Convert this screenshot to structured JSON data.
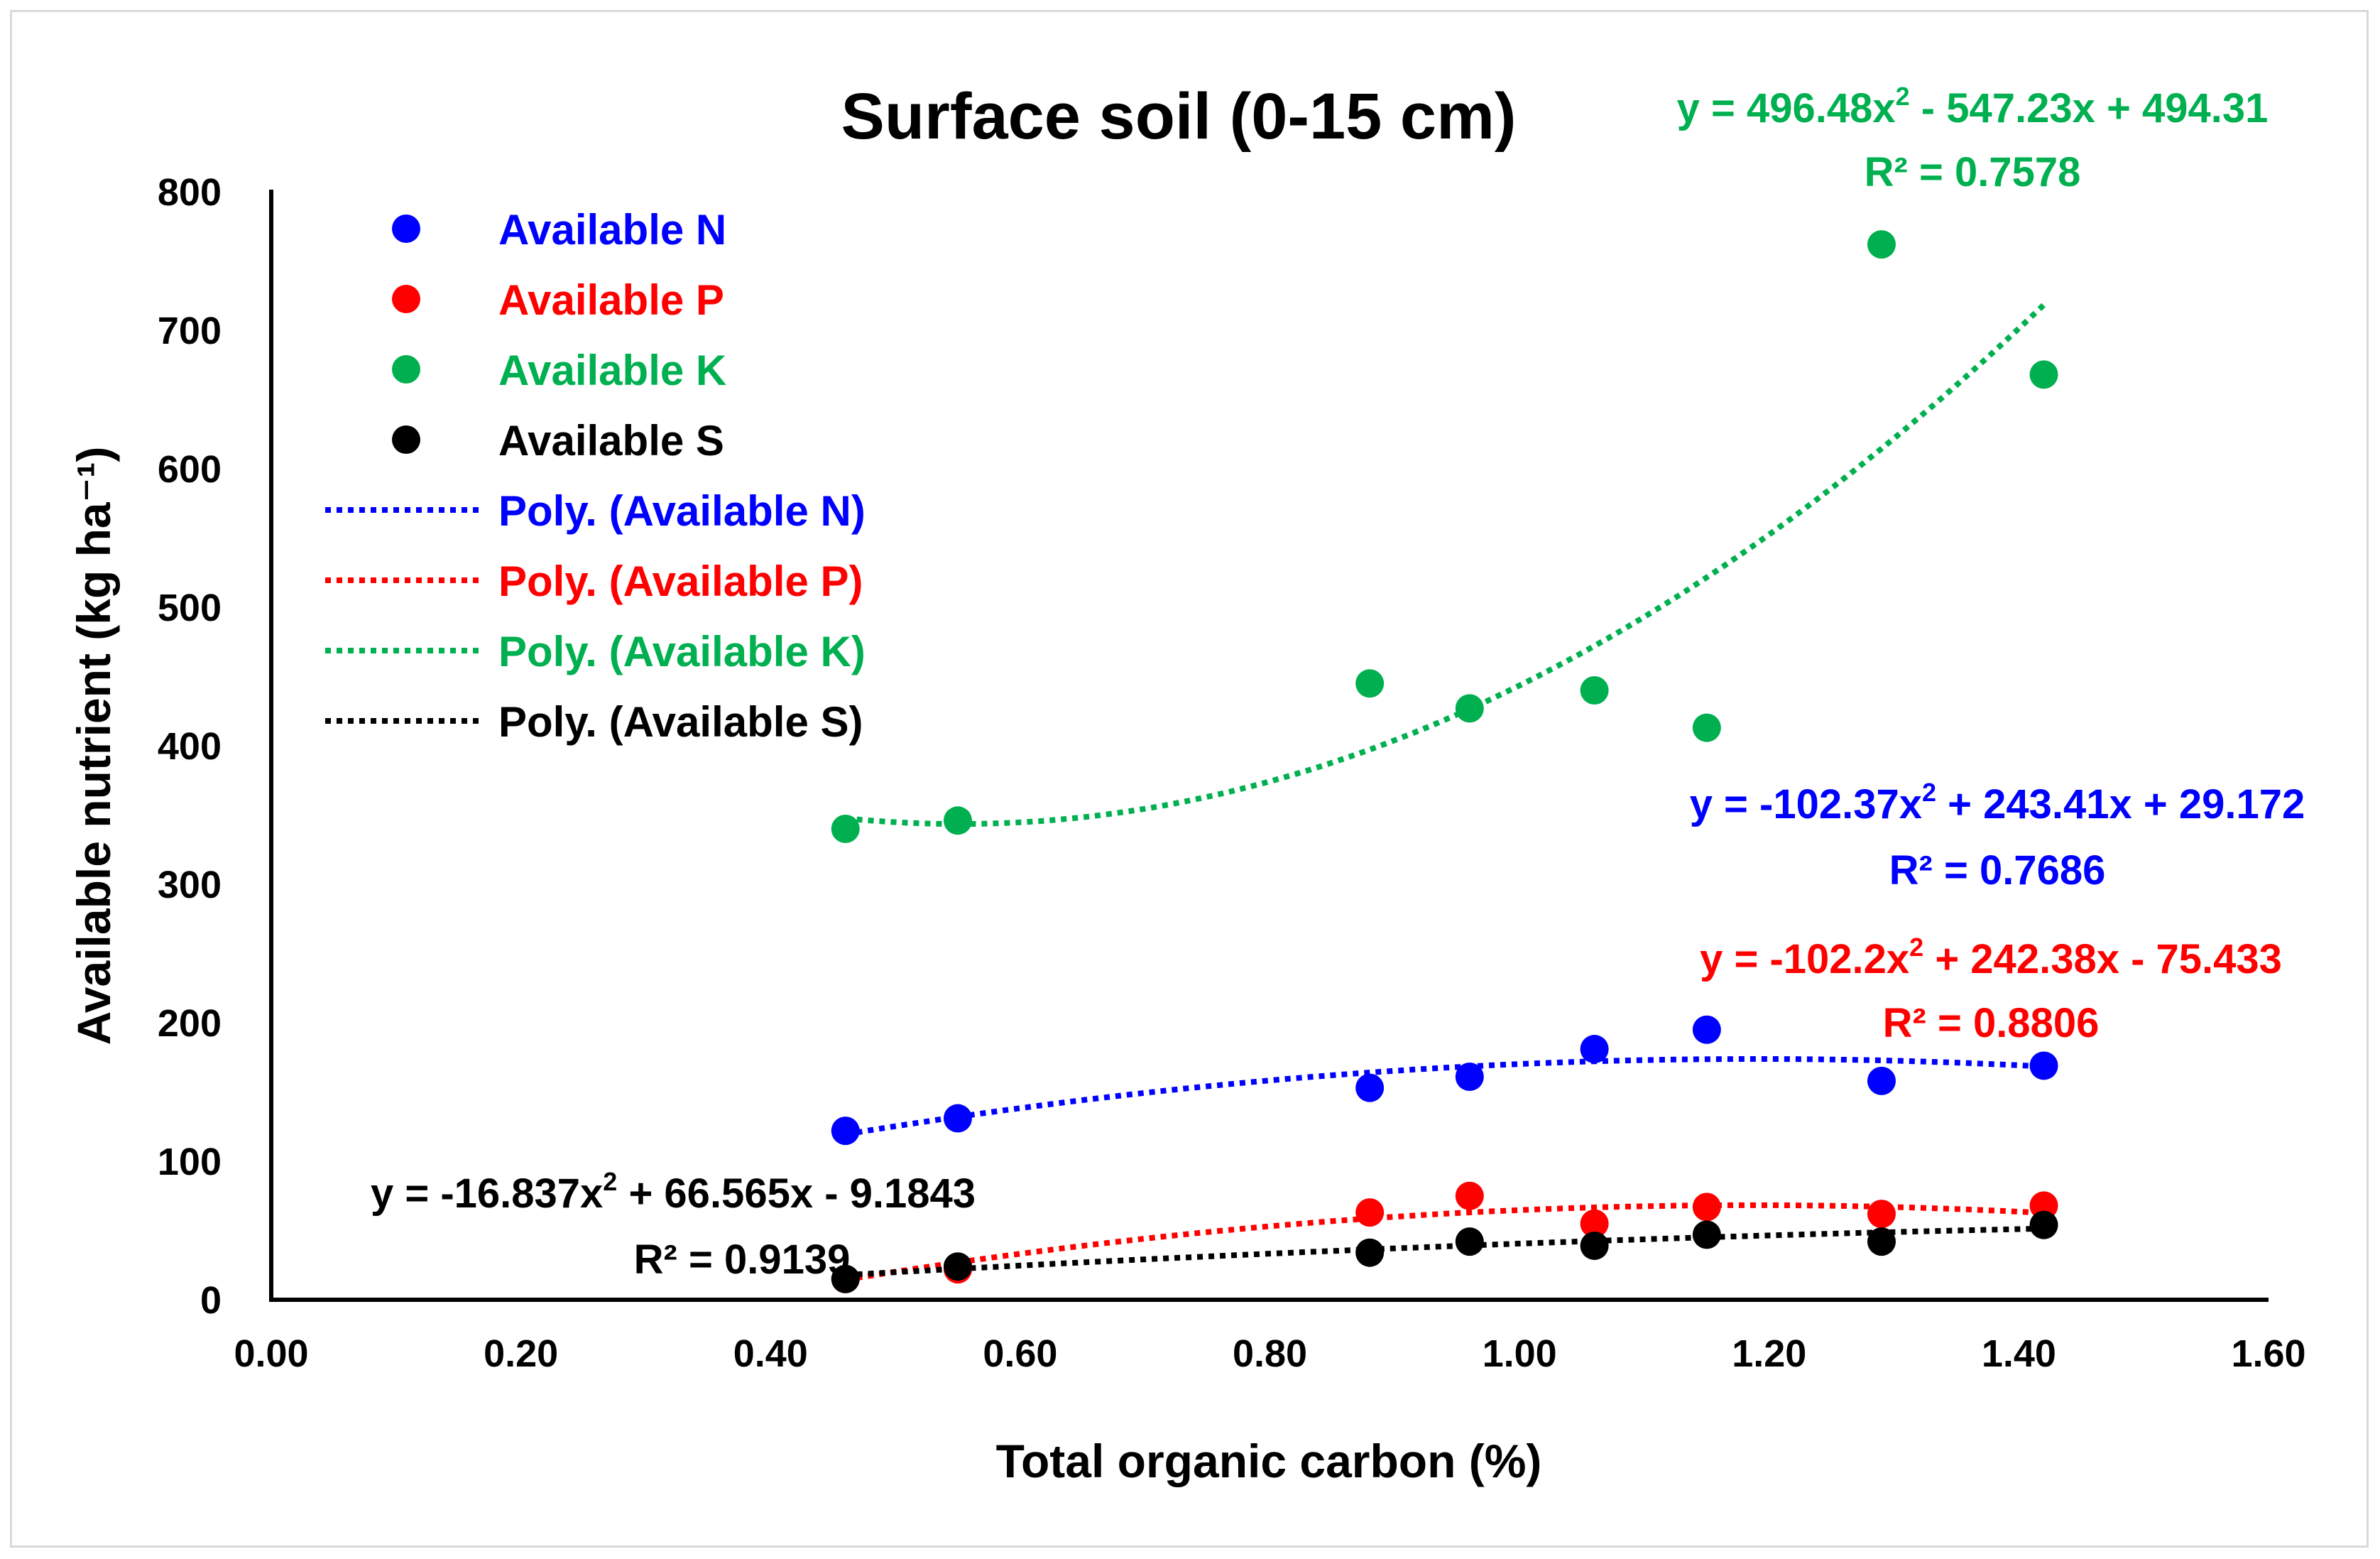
{
  "chart_data": {
    "type": "scatter",
    "title": "Surface soil (0-15 cm)",
    "xlabel": "Total organic carbon (%)",
    "ylabel": "Available nutrient (kg ha⁻¹)",
    "xlim": [
      0,
      1.6
    ],
    "ylim": [
      0,
      800
    ],
    "x_ticks": [
      0,
      0.2,
      0.4,
      0.6,
      0.8,
      1.0,
      1.2,
      1.4,
      1.6
    ],
    "x_tick_labels": [
      "0.00",
      "0.20",
      "0.40",
      "0.60",
      "0.80",
      "1.00",
      "1.20",
      "1.40",
      "1.60"
    ],
    "y_ticks": [
      0,
      100,
      200,
      300,
      400,
      500,
      600,
      700,
      800
    ],
    "y_tick_labels": [
      "0",
      "100",
      "200",
      "300",
      "400",
      "500",
      "600",
      "700",
      "800"
    ],
    "grid": false,
    "legend_position": "top-left",
    "series": [
      {
        "name": "Available N",
        "color": "#0000ff",
        "x": [
          0.46,
          0.55,
          0.88,
          0.96,
          1.06,
          1.15,
          1.29,
          1.42
        ],
        "y": [
          122,
          131,
          153,
          161,
          181,
          195,
          158,
          169
        ],
        "trend": {
          "label": "Poly. (Available N)",
          "coefficients": [
            -102.37,
            243.41,
            29.172
          ],
          "equation": "y = -102.37x",
          "equation_rest": " + 243.41x + 29.172",
          "r2": "R² = 0.7686"
        }
      },
      {
        "name": "Available P",
        "color": "#ff0000",
        "x": [
          0.46,
          0.55,
          0.88,
          0.96,
          1.06,
          1.15,
          1.29,
          1.42
        ],
        "y": [
          15,
          22,
          63,
          75,
          55,
          67,
          62,
          68
        ],
        "trend": {
          "label": "Poly. (Available P)",
          "coefficients": [
            -102.2,
            242.38,
            -75.433
          ],
          "equation": "y = -102.2x",
          "equation_rest": " + 242.38x - 75.433",
          "r2": "R² = 0.8806"
        }
      },
      {
        "name": "Available K",
        "color": "#00b050",
        "x": [
          0.46,
          0.55,
          0.88,
          0.96,
          1.06,
          1.15,
          1.29,
          1.42
        ],
        "y": [
          340,
          346,
          445,
          427,
          440,
          413,
          762,
          668
        ],
        "trend": {
          "label": "Poly. (Available K)",
          "coefficients": [
            496.48,
            -547.23,
            494.31
          ],
          "equation": "y = 496.48x",
          "equation_rest": " - 547.23x + 494.31",
          "r2": "R² = 0.7578"
        }
      },
      {
        "name": "Available S",
        "color": "#000000",
        "x": [
          0.46,
          0.55,
          0.88,
          0.96,
          1.06,
          1.15,
          1.29,
          1.42
        ],
        "y": [
          15,
          24,
          34,
          42,
          39,
          47,
          42,
          54
        ],
        "trend": {
          "label": "Poly. (Available S)",
          "coefficients": [
            -16.837,
            66.565,
            -9.1843
          ],
          "equation": "y = -16.837x",
          "equation_rest": " + 66.565x - 9.1843",
          "r2": "R² = 0.9139"
        }
      }
    ],
    "trend_range": [
      0.46,
      1.42
    ]
  }
}
